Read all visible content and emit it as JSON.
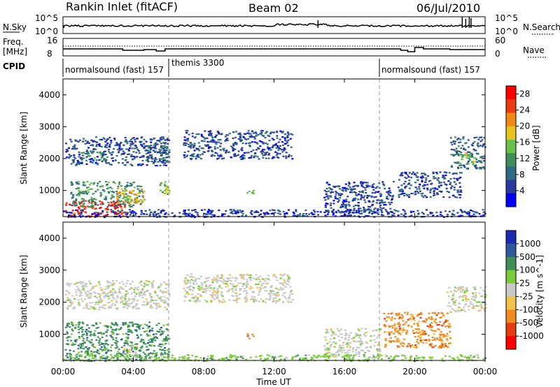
{
  "header": {
    "site": "Rankin Inlet (fitACF)",
    "beam": "Beam 02",
    "date": "06/Jul/2010"
  },
  "left_labels": {
    "nsky": "N.Sky",
    "freq_line1": "Freq.",
    "freq_line2": "[MHz]",
    "cpid": "CPID"
  },
  "right_labels": {
    "nsearch": "N.Search",
    "nave": "Nave"
  },
  "noise_ticks": {
    "top": "10^5",
    "bottom": "10^0"
  },
  "freq_ticks": {
    "top": "16",
    "bottom": "8"
  },
  "nave_ticks": {
    "top": "60",
    "bottom": "0"
  },
  "cpid_segments": [
    {
      "label": "normalsound (fast) 157",
      "start": "00:00",
      "end": "06:00"
    },
    {
      "label": "themis 3300",
      "start": "06:00",
      "end": "18:00"
    },
    {
      "label": "normalsound (fast) 157",
      "start": "18:00",
      "end": "24:00"
    }
  ],
  "colors": {
    "power": [
      "#0000ff",
      "#2a3a9c",
      "#2e6a84",
      "#3f8f5a",
      "#66c24a",
      "#e8c21e",
      "#f08a14",
      "#ee3a10",
      "#ff0000"
    ],
    "velocity": [
      "#ff0000",
      "#e83a10",
      "#f08c1e",
      "#f2c24c",
      "#c8c8c8",
      "#78cc38",
      "#3f8f5a",
      "#2e5a9c",
      "#1a2ab0"
    ]
  },
  "chart_data": [
    {
      "type": "heatmap",
      "name": "power",
      "ylabel": "Slant Range [km]",
      "xlim": [
        "00:00",
        "24:00"
      ],
      "ylim": [
        180,
        4500
      ],
      "yticks": [
        "1000",
        "2000",
        "3000",
        "4000"
      ],
      "colorbar": {
        "label": "Power [dB]",
        "ticks": [
          "4",
          "8",
          "12",
          "16",
          "20",
          "24",
          "28"
        ],
        "range": [
          0,
          30
        ]
      },
      "patches": [
        {
          "t0": 0.1,
          "t1": 3.6,
          "r0": 180,
          "r1": 700,
          "level": 27
        },
        {
          "t0": 0.4,
          "t1": 4.5,
          "r0": 500,
          "r1": 1300,
          "level": 11
        },
        {
          "t0": 3.0,
          "t1": 4.6,
          "r0": 600,
          "r1": 1100,
          "level": 19
        },
        {
          "t0": 5.4,
          "t1": 6.0,
          "r0": 850,
          "r1": 1300,
          "level": 15
        },
        {
          "t0": 0.1,
          "t1": 6.0,
          "r0": 1800,
          "r1": 2700,
          "level": 6
        },
        {
          "t0": 1.0,
          "t1": 2.8,
          "r0": 1950,
          "r1": 2250,
          "level": 12
        },
        {
          "t0": 4.5,
          "t1": 6.0,
          "r0": 1900,
          "r1": 2500,
          "level": 9
        },
        {
          "t0": 6.8,
          "t1": 13.0,
          "r0": 2000,
          "r1": 2900,
          "level": 6
        },
        {
          "t0": 10.4,
          "t1": 10.8,
          "r0": 880,
          "r1": 1100,
          "level": 14
        },
        {
          "t0": 14.8,
          "t1": 18.8,
          "r0": 300,
          "r1": 1300,
          "level": 6
        },
        {
          "t0": 19.0,
          "t1": 22.6,
          "r0": 800,
          "r1": 1600,
          "level": 6
        },
        {
          "t0": 22.0,
          "t1": 24.0,
          "r0": 1700,
          "r1": 2700,
          "level": 8
        },
        {
          "t0": 22.4,
          "t1": 23.4,
          "r0": 1800,
          "r1": 2200,
          "level": 15
        },
        {
          "t0": 0.0,
          "t1": 24.0,
          "r0": 180,
          "r1": 420,
          "level": 5
        }
      ]
    },
    {
      "type": "heatmap",
      "name": "velocity",
      "xlabel": "Time UT",
      "ylabel": "Slant Range [km]",
      "xlim": [
        "00:00",
        "24:00"
      ],
      "ylim": [
        180,
        4500
      ],
      "xticks": [
        "00:00",
        "04:00",
        "08:00",
        "12:00",
        "16:00",
        "20:00",
        "00:00"
      ],
      "yticks": [
        "1000",
        "2000",
        "3000",
        "4000"
      ],
      "colorbar": {
        "label": "Velocity [m s^-1]",
        "ticks": [
          "1000",
          "500",
          "100",
          "25",
          "-25",
          "-100",
          "-500",
          "-1000"
        ]
      },
      "patches": [
        {
          "t0": 0.1,
          "t1": 6.0,
          "r0": 180,
          "r1": 1400,
          "level": 6
        },
        {
          "t0": 3.4,
          "t1": 4.2,
          "r0": 300,
          "r1": 700,
          "level": 4
        },
        {
          "t0": 0.1,
          "t1": 6.0,
          "r0": 1800,
          "r1": 2700,
          "level": 4
        },
        {
          "t0": 6.8,
          "t1": 13.0,
          "r0": 2000,
          "r1": 2900,
          "level": 4
        },
        {
          "t0": 10.4,
          "t1": 10.8,
          "r0": 880,
          "r1": 1100,
          "level": 2
        },
        {
          "t0": 14.8,
          "t1": 18.0,
          "r0": 300,
          "r1": 1200,
          "level": 4
        },
        {
          "t0": 18.2,
          "t1": 22.0,
          "r0": 600,
          "r1": 1700,
          "level": 2
        },
        {
          "t0": 21.8,
          "t1": 24.0,
          "r0": 1700,
          "r1": 2500,
          "level": 4
        },
        {
          "t0": 0.0,
          "t1": 24.0,
          "r0": 180,
          "r1": 380,
          "level": 5
        }
      ]
    }
  ]
}
